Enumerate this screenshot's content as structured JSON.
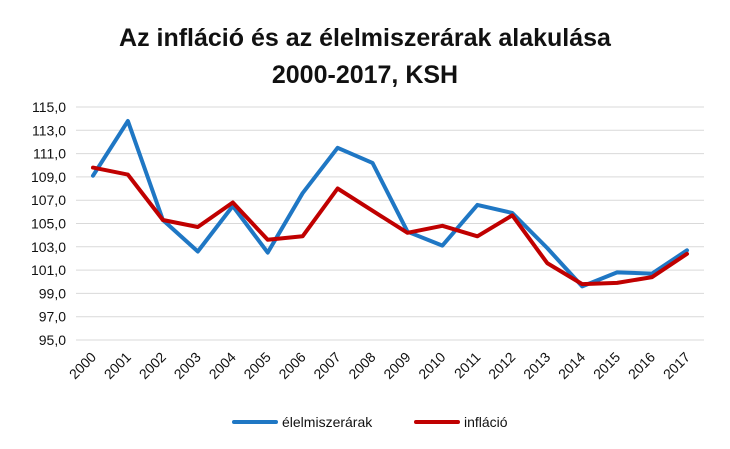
{
  "chart_data": {
    "type": "line",
    "title_line1": "Az infláció és az élelmiszerárak alakulása",
    "title_line2": "2000-2017, KSH",
    "x": [
      "2000",
      "2001",
      "2002",
      "2003",
      "2004",
      "2005",
      "2006",
      "2007",
      "2008",
      "2009",
      "2010",
      "2011",
      "2012",
      "2013",
      "2014",
      "2015",
      "2016",
      "2017"
    ],
    "yticks": [
      "95,0",
      "97,0",
      "99,0",
      "101,0",
      "103,0",
      "105,0",
      "107,0",
      "109,0",
      "111,0",
      "113,0",
      "115,0"
    ],
    "ylim": [
      95,
      115
    ],
    "grid": true,
    "legend_position": "bottom",
    "series": [
      {
        "name": "élelmiszerárak",
        "color": "#1f77c4",
        "values": [
          109.1,
          113.8,
          105.3,
          102.6,
          106.5,
          102.5,
          107.6,
          111.5,
          110.2,
          104.3,
          103.1,
          106.6,
          105.9,
          102.9,
          99.6,
          100.8,
          100.7,
          102.7
        ]
      },
      {
        "name": "infláció",
        "color": "#c00000",
        "values": [
          109.8,
          109.2,
          105.3,
          104.7,
          106.8,
          103.6,
          103.9,
          108.0,
          106.1,
          104.2,
          104.8,
          103.9,
          105.7,
          101.6,
          99.8,
          99.9,
          100.4,
          102.4
        ]
      }
    ]
  }
}
